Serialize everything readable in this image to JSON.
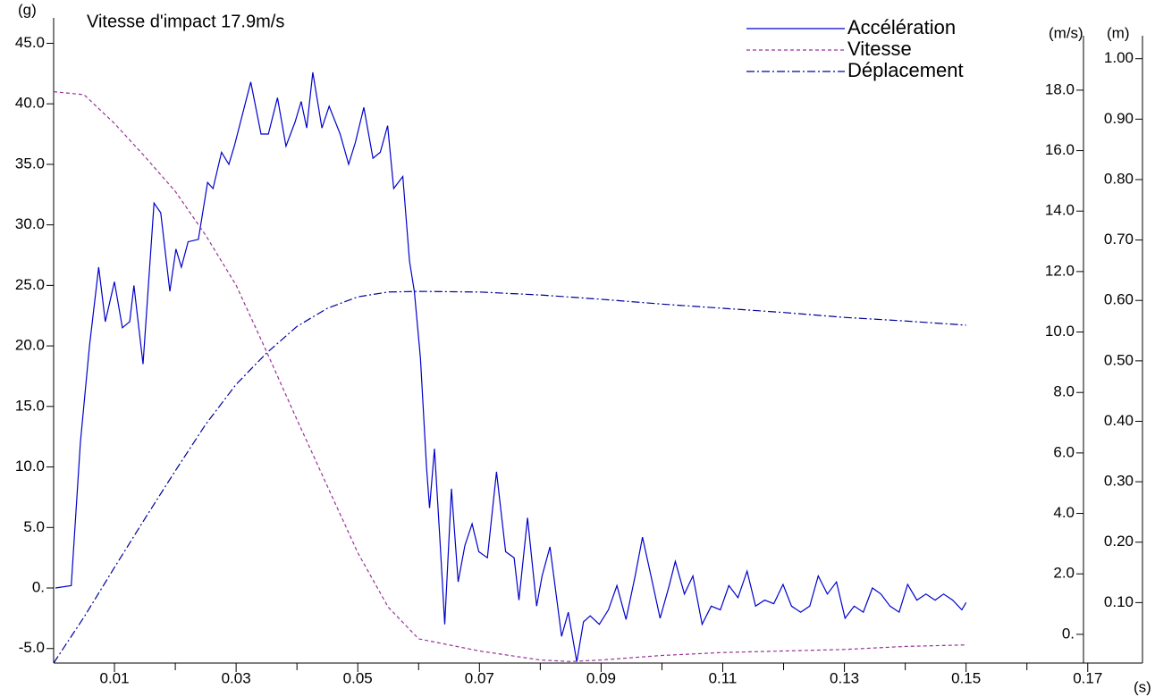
{
  "chart_data": {
    "type": "line",
    "annotation": "Vitesse d'impact 17.9m/s",
    "y_unit": "(g)",
    "y2_unit": "(m/s)",
    "y3_unit": "(m)",
    "x_unit": "(s)",
    "xlim": [
      0,
      0.179
    ],
    "xticks": [
      0.01,
      0.03,
      0.05,
      0.07,
      0.09,
      0.11,
      0.13,
      0.15,
      0.17
    ],
    "xminor_ticks": [
      0.02,
      0.04,
      0.06,
      0.08,
      0.1,
      0.12,
      0.14,
      0.16
    ],
    "ylim": [
      -6.2,
      47.1
    ],
    "yticks": [
      {
        "value": -5,
        "label": "-5.0"
      },
      {
        "value": 0,
        "label": "0."
      },
      {
        "value": 5,
        "label": "5.0"
      },
      {
        "value": 10,
        "label": "10.0"
      },
      {
        "value": 15,
        "label": "15.0"
      },
      {
        "value": 20,
        "label": "20.0"
      },
      {
        "value": 25,
        "label": "25.0"
      },
      {
        "value": 30,
        "label": "30.0"
      },
      {
        "value": 35,
        "label": "35.0"
      },
      {
        "value": 40,
        "label": "40.0"
      },
      {
        "value": 45,
        "label": "45.0"
      }
    ],
    "y2lim": [
      -0.95,
      19.8
    ],
    "y2ticks": [
      {
        "value": 0,
        "label": "0."
      },
      {
        "value": 2,
        "label": "2.0"
      },
      {
        "value": 4,
        "label": "4.0"
      },
      {
        "value": 6,
        "label": "6.0"
      },
      {
        "value": 8,
        "label": "8.0"
      },
      {
        "value": 10,
        "label": "10.0"
      },
      {
        "value": 12,
        "label": "12.0"
      },
      {
        "value": 14,
        "label": "14.0"
      },
      {
        "value": 16,
        "label": "16.0"
      },
      {
        "value": 18,
        "label": "18.0"
      }
    ],
    "y3lim": [
      0,
      1.038
    ],
    "y3ticks": [
      {
        "value": 0.1,
        "label": "0.10"
      },
      {
        "value": 0.2,
        "label": "0.20"
      },
      {
        "value": 0.3,
        "label": "0.30"
      },
      {
        "value": 0.4,
        "label": "0.40"
      },
      {
        "value": 0.5,
        "label": "0.50"
      },
      {
        "value": 0.6,
        "label": "0.60"
      },
      {
        "value": 0.7,
        "label": "0.70"
      },
      {
        "value": 0.8,
        "label": "0.80"
      },
      {
        "value": 0.9,
        "label": "0.90"
      },
      {
        "value": 1,
        "label": "1.00"
      }
    ],
    "series": [
      {
        "name": "Accélération",
        "color": "#0000cc",
        "line_style": "solid",
        "axis": "y",
        "x": [
          0.0003,
          0.0029,
          0.0044,
          0.0059,
          0.0074,
          0.0085,
          0.01,
          0.0113,
          0.0125,
          0.0132,
          0.0147,
          0.0165,
          0.0176,
          0.0191,
          0.0201,
          0.021,
          0.0221,
          0.0238,
          0.0253,
          0.0262,
          0.0276,
          0.0288,
          0.0297,
          0.0324,
          0.0341,
          0.0353,
          0.0368,
          0.0382,
          0.0397,
          0.0407,
          0.0416,
          0.0426,
          0.0441,
          0.0453,
          0.0471,
          0.0485,
          0.0496,
          0.051,
          0.0525,
          0.0537,
          0.0549,
          0.0559,
          0.0574,
          0.0585,
          0.0593,
          0.0603,
          0.0613,
          0.0618,
          0.0626,
          0.0635,
          0.0643,
          0.0654,
          0.0665,
          0.0676,
          0.0688,
          0.0699,
          0.0713,
          0.0728,
          0.0743,
          0.0757,
          0.0765,
          0.0779,
          0.0794,
          0.0803,
          0.0816,
          0.0835,
          0.0846,
          0.086,
          0.0871,
          0.0882,
          0.0897,
          0.0912,
          0.0926,
          0.0941,
          0.0956,
          0.0968,
          0.0982,
          0.0997,
          0.1012,
          0.1022,
          0.1037,
          0.1051,
          0.1066,
          0.1081,
          0.1096,
          0.111,
          0.1125,
          0.114,
          0.1154,
          0.1169,
          0.1184,
          0.1199,
          0.1213,
          0.1228,
          0.1243,
          0.1257,
          0.1272,
          0.1287,
          0.1301,
          0.1316,
          0.1331,
          0.1346,
          0.136,
          0.1375,
          0.139,
          0.1404,
          0.1419,
          0.1434,
          0.1449,
          0.1463,
          0.1478,
          0.1493,
          0.15
        ],
        "values": [
          0,
          0.2,
          12,
          20,
          26.5,
          22,
          25.3,
          21.5,
          22,
          25,
          18.5,
          31.8,
          31,
          24.5,
          28,
          26.5,
          28.6,
          28.8,
          33.5,
          33,
          36,
          35,
          36.5,
          41.8,
          37.5,
          37.5,
          40.5,
          36.5,
          38.5,
          40.2,
          38,
          42.6,
          38,
          39.8,
          37.5,
          35,
          36.8,
          39.7,
          35.5,
          36,
          38.2,
          33,
          34,
          27,
          24.5,
          19,
          10,
          6.6,
          11.5,
          4,
          -3,
          8.2,
          0.5,
          3.5,
          5.3,
          3,
          2.5,
          9.6,
          3,
          2.5,
          -1,
          5.8,
          -1.5,
          1,
          3.4,
          -4,
          -2,
          -6.1,
          -2.8,
          -2.3,
          -3,
          -1.8,
          0.2,
          -2.6,
          1,
          4.2,
          1,
          -2.5,
          0.2,
          2.2,
          -0.5,
          1,
          -3,
          -1.5,
          -1.8,
          0.2,
          -0.8,
          1.4,
          -1.5,
          -1,
          -1.3,
          0.3,
          -1.5,
          -2,
          -1.5,
          1,
          -0.5,
          0.5,
          -2.5,
          -1.5,
          -2,
          0,
          -0.5,
          -1.5,
          -2,
          0.3,
          -1,
          -0.5,
          -1,
          -0.5,
          -1,
          -1.8,
          -1.2
        ]
      },
      {
        "name": "Vitesse",
        "color": "#993399",
        "line_style": "dashed",
        "axis": "y2",
        "x": [
          0,
          0.005,
          0.01,
          0.015,
          0.02,
          0.025,
          0.03,
          0.035,
          0.04,
          0.045,
          0.05,
          0.055,
          0.06,
          0.065,
          0.07,
          0.075,
          0.08,
          0.085,
          0.09,
          0.1,
          0.11,
          0.12,
          0.13,
          0.14,
          0.15
        ],
        "values": [
          17.95,
          17.85,
          16.9,
          15.8,
          14.65,
          13.2,
          11.55,
          9.35,
          7.1,
          4.9,
          2.7,
          0.9,
          -0.15,
          -0.35,
          -0.55,
          -0.7,
          -0.85,
          -0.9,
          -0.85,
          -0.7,
          -0.6,
          -0.55,
          -0.5,
          -0.4,
          -0.35
        ]
      },
      {
        "name": "Déplacement",
        "color": "#000099",
        "line_style": "dashdot",
        "axis": "y3",
        "x": [
          0,
          0.005,
          0.01,
          0.015,
          0.02,
          0.025,
          0.03,
          0.035,
          0.04,
          0.045,
          0.05,
          0.055,
          0.06,
          0.07,
          0.08,
          0.09,
          0.1,
          0.11,
          0.12,
          0.13,
          0.14,
          0.15
        ],
        "values": [
          0,
          0.076,
          0.158,
          0.239,
          0.318,
          0.395,
          0.461,
          0.513,
          0.557,
          0.587,
          0.606,
          0.614,
          0.615,
          0.614,
          0.609,
          0.602,
          0.594,
          0.587,
          0.58,
          0.572,
          0.566,
          0.559
        ]
      }
    ]
  }
}
